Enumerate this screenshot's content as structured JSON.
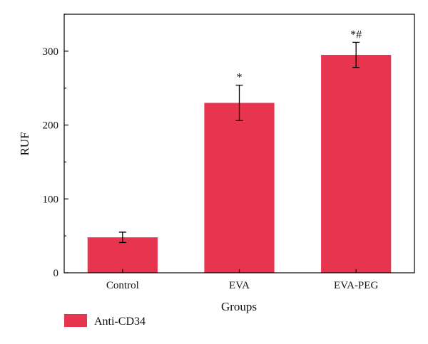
{
  "chart_data": {
    "type": "bar",
    "title": "",
    "xlabel": "Groups",
    "ylabel": "RUF",
    "categories": [
      "Control",
      "EVA",
      "EVA-PEG"
    ],
    "series": [
      {
        "name": "Anti-CD34",
        "values": [
          48,
          230,
          295
        ],
        "errors": [
          7,
          24,
          17
        ],
        "annotations": [
          "",
          "*",
          "*#"
        ]
      }
    ],
    "ylim": [
      0,
      350
    ],
    "yticks": [
      0,
      100,
      200,
      300
    ],
    "bar_color": "#e8354f",
    "grid": false,
    "legend_position": "bottom-left"
  }
}
